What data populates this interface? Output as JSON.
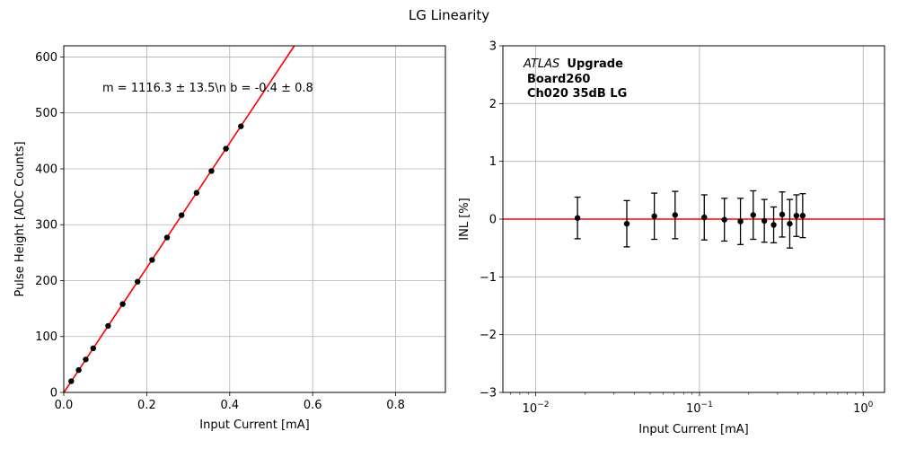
{
  "figure_title": "LG Linearity",
  "colors": {
    "fit_line": "#ff0000",
    "points": "#000000",
    "grid": "#b0b0b0"
  },
  "chart_data": [
    {
      "type": "scatter",
      "title": "",
      "xlabel": "Input Current [mA]",
      "ylabel": "Pulse Height [ADC Counts]",
      "xlim": [
        0,
        0.92
      ],
      "ylim": [
        0,
        620
      ],
      "grid": true,
      "x_ticks": [
        0.0,
        0.2,
        0.4,
        0.6,
        0.8
      ],
      "x_tick_labels": [
        "0.0",
        "0.2",
        "0.4",
        "0.6",
        "0.8"
      ],
      "y_ticks": [
        0,
        100,
        200,
        300,
        400,
        500,
        600
      ],
      "y_tick_labels": [
        "0",
        "100",
        "200",
        "300",
        "400",
        "500",
        "600"
      ],
      "annotation": "m = 1116.3 ± 13.5\\n b = -0.4 ± 0.8",
      "fit": {
        "slope": 1116.3,
        "intercept": -0.4
      },
      "points": [
        {
          "x": 0.018,
          "y": 20
        },
        {
          "x": 0.036,
          "y": 40
        },
        {
          "x": 0.053,
          "y": 59
        },
        {
          "x": 0.071,
          "y": 79
        },
        {
          "x": 0.107,
          "y": 119
        },
        {
          "x": 0.142,
          "y": 158
        },
        {
          "x": 0.178,
          "y": 198
        },
        {
          "x": 0.213,
          "y": 237
        },
        {
          "x": 0.249,
          "y": 277
        },
        {
          "x": 0.284,
          "y": 317
        },
        {
          "x": 0.32,
          "y": 357
        },
        {
          "x": 0.356,
          "y": 396
        },
        {
          "x": 0.391,
          "y": 436
        },
        {
          "x": 0.427,
          "y": 476
        }
      ]
    },
    {
      "type": "scatter",
      "title": "",
      "xlabel": "Input Current [mA]",
      "ylabel": "INL [%]",
      "xscale": "log",
      "xlim": [
        0.0063,
        1.35
      ],
      "ylim": [
        -3,
        3
      ],
      "grid": true,
      "x_ticks": [
        0.01,
        0.1,
        1
      ],
      "x_tick_base": "10",
      "x_tick_exponents": [
        "−2",
        "−1",
        "0"
      ],
      "y_ticks": [
        -3,
        -2,
        -1,
        0,
        1,
        2,
        3
      ],
      "y_tick_labels": [
        "−3",
        "−2",
        "−1",
        "0",
        "1",
        "2",
        "3"
      ],
      "reference_line": 0,
      "label_italic": "ATLAS",
      "label_bold_1": "Upgrade",
      "label_line2": "Board260",
      "label_line3": "Ch020 35dB LG",
      "points": [
        {
          "x": 0.018,
          "y": 0.02,
          "err": 0.36
        },
        {
          "x": 0.036,
          "y": -0.08,
          "err": 0.4
        },
        {
          "x": 0.053,
          "y": 0.05,
          "err": 0.4
        },
        {
          "x": 0.071,
          "y": 0.07,
          "err": 0.41
        },
        {
          "x": 0.107,
          "y": 0.03,
          "err": 0.39
        },
        {
          "x": 0.142,
          "y": -0.01,
          "err": 0.37
        },
        {
          "x": 0.178,
          "y": -0.04,
          "err": 0.4
        },
        {
          "x": 0.213,
          "y": 0.07,
          "err": 0.42
        },
        {
          "x": 0.249,
          "y": -0.03,
          "err": 0.37
        },
        {
          "x": 0.284,
          "y": -0.1,
          "err": 0.31
        },
        {
          "x": 0.32,
          "y": 0.08,
          "err": 0.39
        },
        {
          "x": 0.356,
          "y": -0.08,
          "err": 0.42
        },
        {
          "x": 0.391,
          "y": 0.06,
          "err": 0.36
        },
        {
          "x": 0.427,
          "y": 0.06,
          "err": 0.38
        }
      ]
    }
  ]
}
